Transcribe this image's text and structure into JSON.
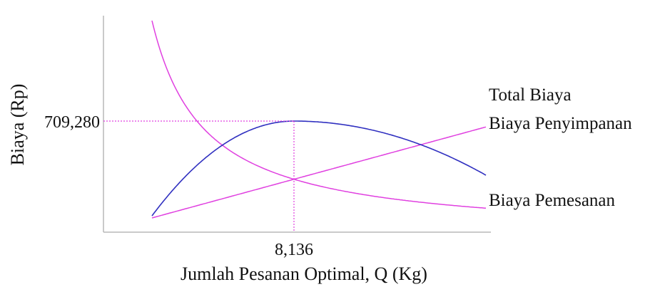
{
  "chart_data": {
    "type": "line",
    "title": "",
    "xlabel": "Jumlah Pesanan Optimal, Q (Kg)",
    "ylabel": "Biaya (Rp)",
    "colors": {
      "total": "#3030c0",
      "holding": "#e040e0",
      "ordering": "#e040e0",
      "guide": "#e040e0",
      "axis": "#b9b9b9"
    },
    "optimum": {
      "q": 8136,
      "q_label": "8,136",
      "total_cost": 709280,
      "total_cost_label": "709,280"
    },
    "series": [
      {
        "key": "total",
        "name": "Total Biaya"
      },
      {
        "key": "holding",
        "name": "Biaya Penyimpanan"
      },
      {
        "key": "ordering",
        "name": "Biaya Pemesanan"
      }
    ]
  }
}
